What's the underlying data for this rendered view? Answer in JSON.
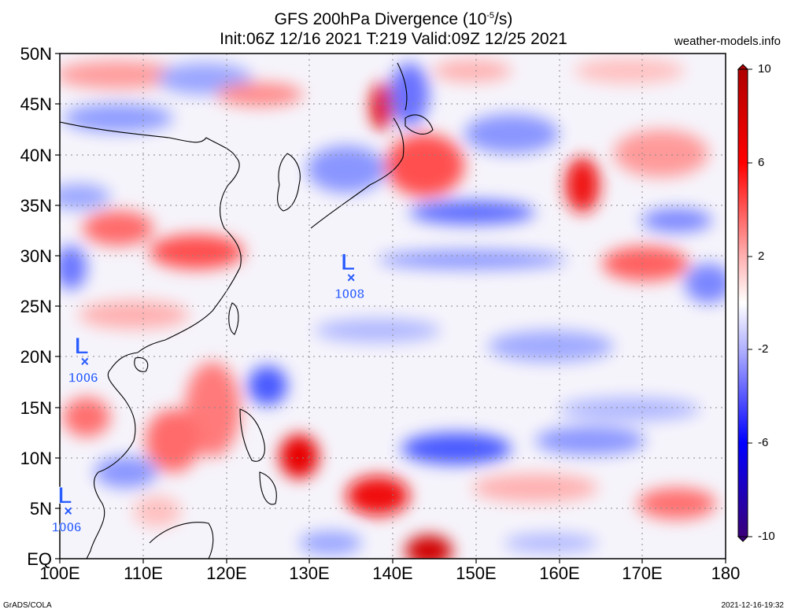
{
  "header": {
    "title_prefix": "GFS 200hPa Divergence (10",
    "title_exp": "-5",
    "title_suffix": "/s)",
    "subtitle": "Init:06Z 12/16 2021 T:219 Valid:09Z 12/25 2021",
    "site": "weather-models.info"
  },
  "footer": {
    "left": "GrADS/COLA",
    "right": "2021-12-16-19:32"
  },
  "axes": {
    "lat_labels": [
      "50N",
      "45N",
      "40N",
      "35N",
      "30N",
      "25N",
      "20N",
      "15N",
      "10N",
      "5N",
      "EQ"
    ],
    "lon_labels": [
      "100E",
      "110E",
      "120E",
      "130E",
      "140E",
      "150E",
      "160E",
      "170E",
      "180"
    ]
  },
  "colorbar": {
    "labels": [
      "10",
      "6",
      "2",
      "-2",
      "-6",
      "-10"
    ],
    "colors": [
      "#3a007a",
      "#2a00d8",
      "#5a5aff",
      "#a9a9ff",
      "#ffffff",
      "#ffa6a6",
      "#ff4a4a",
      "#e60000",
      "#b00000"
    ]
  },
  "pressure_centers": [
    {
      "letter": "L",
      "value": "1008",
      "lon": 135,
      "lat": 27.8
    },
    {
      "letter": "L",
      "value": "1006",
      "lon": 103,
      "lat": 19.5
    },
    {
      "letter": "L",
      "value": "1006",
      "lon": 101,
      "lat": 4.7
    }
  ],
  "colors": {
    "low_center": "#2a5cff",
    "grid": "#888888"
  }
}
